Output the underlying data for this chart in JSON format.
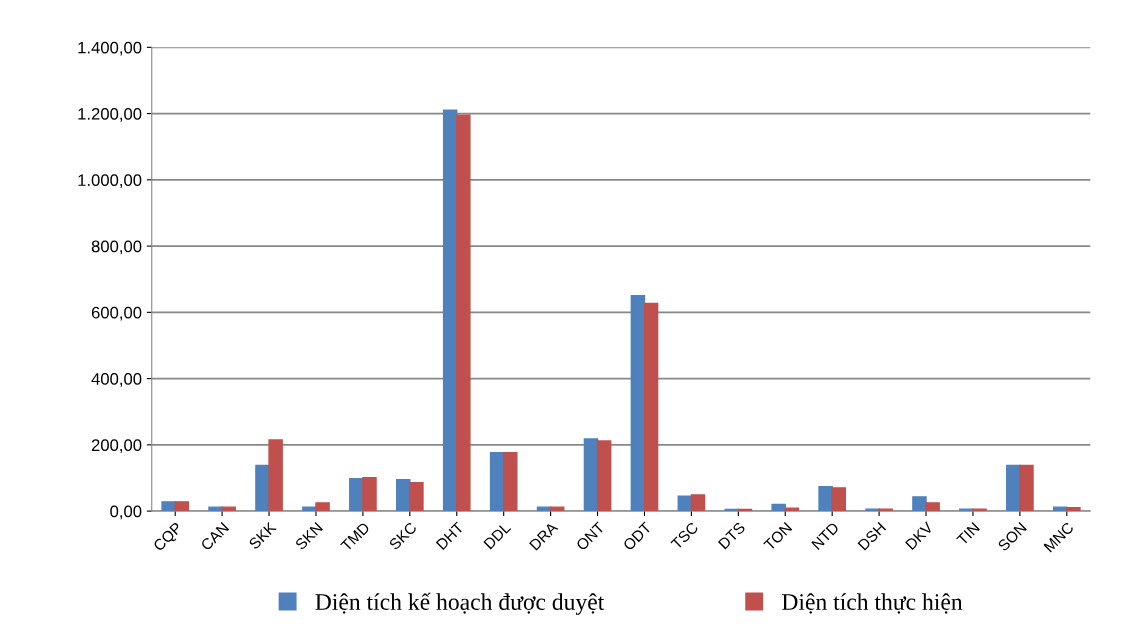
{
  "chart_data": {
    "type": "bar",
    "categories": [
      "CQP",
      "CAN",
      "SKK",
      "SKN",
      "TMD",
      "SKC",
      "DHT",
      "DDL",
      "DRA",
      "ONT",
      "ODT",
      "TSC",
      "DTS",
      "TON",
      "NTD",
      "DSH",
      "DKV",
      "TIN",
      "SON",
      "MNC"
    ],
    "series": [
      {
        "name": "Diện tích kế hoạch được duyệt",
        "color": "#4f81bd",
        "values": [
          28,
          12,
          138,
          12,
          98,
          95,
          1210,
          176,
          12,
          218,
          650,
          45,
          5,
          20,
          74,
          6,
          43,
          6,
          138,
          12
        ]
      },
      {
        "name": "Diện tích thực hiện",
        "color": "#c0504d",
        "values": [
          28,
          12,
          215,
          25,
          101,
          86,
          1195,
          176,
          12,
          212,
          627,
          49,
          5,
          9,
          70,
          6,
          25,
          6,
          138,
          10
        ]
      }
    ],
    "ylim": [
      0,
      1400
    ],
    "yticks": [
      {
        "value": 0,
        "label": "0,00"
      },
      {
        "value": 200,
        "label": "200,00"
      },
      {
        "value": 400,
        "label": "400,00"
      },
      {
        "value": 600,
        "label": "600,00"
      },
      {
        "value": 800,
        "label": "800,00"
      },
      {
        "value": 1000,
        "label": "1.000,00"
      },
      {
        "value": 1200,
        "label": "1.200,00"
      },
      {
        "value": 1400,
        "label": "1.400,00"
      }
    ],
    "grid": "y",
    "legend": "bottom"
  }
}
